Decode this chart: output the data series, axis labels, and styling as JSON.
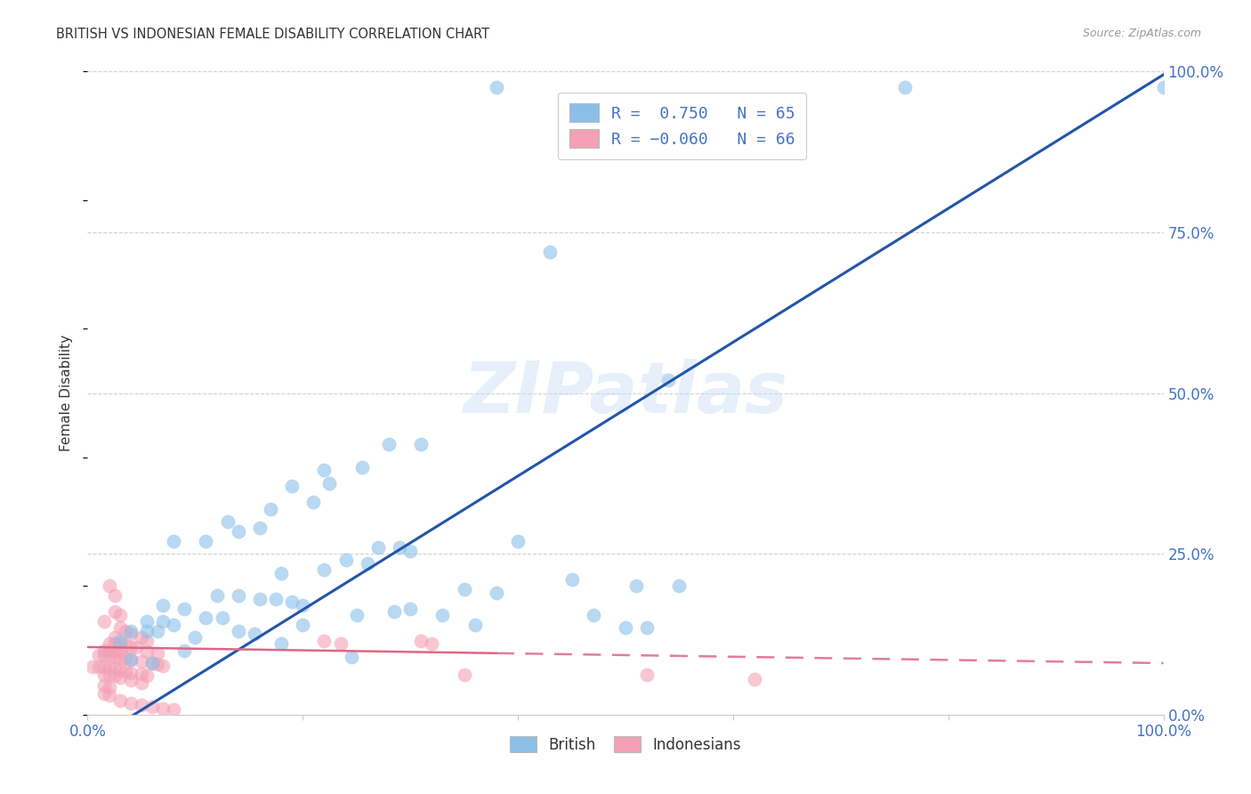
{
  "title": "BRITISH VS INDONESIAN FEMALE DISABILITY CORRELATION CHART",
  "source": "Source: ZipAtlas.com",
  "ylabel": "Female Disability",
  "background_color": "#ffffff",
  "watermark": "ZIPatlas",
  "british_color": "#8BBFE8",
  "indonesian_color": "#F4A0B5",
  "british_line_color": "#2255AA",
  "indonesian_line_color": "#DD6688",
  "axis_color": "#4472C4",
  "title_color": "#333333",
  "source_color": "#999999",
  "grid_color": "#CCCCCC",
  "british_scatter": [
    [
      0.38,
      0.975
    ],
    [
      0.76,
      0.975
    ],
    [
      1.0,
      0.975
    ],
    [
      0.43,
      0.72
    ],
    [
      0.54,
      0.52
    ],
    [
      0.28,
      0.42
    ],
    [
      0.31,
      0.42
    ],
    [
      0.22,
      0.38
    ],
    [
      0.255,
      0.385
    ],
    [
      0.19,
      0.355
    ],
    [
      0.225,
      0.36
    ],
    [
      0.17,
      0.32
    ],
    [
      0.21,
      0.33
    ],
    [
      0.13,
      0.3
    ],
    [
      0.16,
      0.29
    ],
    [
      0.14,
      0.285
    ],
    [
      0.08,
      0.27
    ],
    [
      0.11,
      0.27
    ],
    [
      0.4,
      0.27
    ],
    [
      0.27,
      0.26
    ],
    [
      0.29,
      0.26
    ],
    [
      0.3,
      0.255
    ],
    [
      0.24,
      0.24
    ],
    [
      0.26,
      0.235
    ],
    [
      0.22,
      0.225
    ],
    [
      0.18,
      0.22
    ],
    [
      0.45,
      0.21
    ],
    [
      0.51,
      0.2
    ],
    [
      0.55,
      0.2
    ],
    [
      0.35,
      0.195
    ],
    [
      0.38,
      0.19
    ],
    [
      0.12,
      0.185
    ],
    [
      0.14,
      0.185
    ],
    [
      0.16,
      0.18
    ],
    [
      0.175,
      0.18
    ],
    [
      0.19,
      0.175
    ],
    [
      0.2,
      0.17
    ],
    [
      0.07,
      0.17
    ],
    [
      0.09,
      0.165
    ],
    [
      0.285,
      0.16
    ],
    [
      0.3,
      0.165
    ],
    [
      0.25,
      0.155
    ],
    [
      0.33,
      0.155
    ],
    [
      0.47,
      0.155
    ],
    [
      0.11,
      0.15
    ],
    [
      0.125,
      0.15
    ],
    [
      0.055,
      0.145
    ],
    [
      0.07,
      0.145
    ],
    [
      0.08,
      0.14
    ],
    [
      0.2,
      0.14
    ],
    [
      0.36,
      0.14
    ],
    [
      0.5,
      0.135
    ],
    [
      0.52,
      0.135
    ],
    [
      0.04,
      0.13
    ],
    [
      0.055,
      0.13
    ],
    [
      0.065,
      0.13
    ],
    [
      0.14,
      0.13
    ],
    [
      0.155,
      0.125
    ],
    [
      0.1,
      0.12
    ],
    [
      0.03,
      0.115
    ],
    [
      0.18,
      0.11
    ],
    [
      0.09,
      0.1
    ],
    [
      0.245,
      0.09
    ],
    [
      0.04,
      0.085
    ],
    [
      0.06,
      0.08
    ]
  ],
  "indonesian_scatter": [
    [
      0.02,
      0.2
    ],
    [
      0.025,
      0.185
    ],
    [
      0.025,
      0.16
    ],
    [
      0.03,
      0.155
    ],
    [
      0.015,
      0.145
    ],
    [
      0.03,
      0.135
    ],
    [
      0.035,
      0.13
    ],
    [
      0.04,
      0.125
    ],
    [
      0.025,
      0.12
    ],
    [
      0.05,
      0.12
    ],
    [
      0.055,
      0.115
    ],
    [
      0.02,
      0.11
    ],
    [
      0.025,
      0.11
    ],
    [
      0.03,
      0.11
    ],
    [
      0.035,
      0.108
    ],
    [
      0.04,
      0.105
    ],
    [
      0.045,
      0.105
    ],
    [
      0.015,
      0.1
    ],
    [
      0.02,
      0.1
    ],
    [
      0.025,
      0.1
    ],
    [
      0.03,
      0.098
    ],
    [
      0.055,
      0.098
    ],
    [
      0.065,
      0.095
    ],
    [
      0.01,
      0.092
    ],
    [
      0.015,
      0.092
    ],
    [
      0.02,
      0.092
    ],
    [
      0.025,
      0.09
    ],
    [
      0.03,
      0.088
    ],
    [
      0.035,
      0.088
    ],
    [
      0.04,
      0.085
    ],
    [
      0.05,
      0.083
    ],
    [
      0.06,
      0.08
    ],
    [
      0.065,
      0.078
    ],
    [
      0.07,
      0.076
    ],
    [
      0.005,
      0.075
    ],
    [
      0.01,
      0.075
    ],
    [
      0.015,
      0.075
    ],
    [
      0.02,
      0.073
    ],
    [
      0.025,
      0.073
    ],
    [
      0.03,
      0.07
    ],
    [
      0.035,
      0.068
    ],
    [
      0.04,
      0.065
    ],
    [
      0.05,
      0.063
    ],
    [
      0.055,
      0.06
    ],
    [
      0.22,
      0.115
    ],
    [
      0.235,
      0.11
    ],
    [
      0.31,
      0.115
    ],
    [
      0.32,
      0.11
    ],
    [
      0.35,
      0.062
    ],
    [
      0.52,
      0.062
    ],
    [
      0.62,
      0.055
    ],
    [
      0.015,
      0.062
    ],
    [
      0.02,
      0.062
    ],
    [
      0.025,
      0.06
    ],
    [
      0.03,
      0.058
    ],
    [
      0.04,
      0.054
    ],
    [
      0.05,
      0.05
    ],
    [
      0.015,
      0.045
    ],
    [
      0.02,
      0.042
    ],
    [
      0.015,
      0.033
    ],
    [
      0.02,
      0.03
    ],
    [
      0.03,
      0.022
    ],
    [
      0.04,
      0.018
    ],
    [
      0.05,
      0.015
    ],
    [
      0.06,
      0.012
    ],
    [
      0.07,
      0.01
    ],
    [
      0.08,
      0.008
    ]
  ],
  "xlim": [
    0.0,
    1.0
  ],
  "ylim": [
    0.0,
    1.0
  ],
  "ytick_positions": [
    0.0,
    0.25,
    0.5,
    0.75,
    1.0
  ],
  "ytick_labels": [
    "0.0%",
    "25.0%",
    "50.0%",
    "75.0%",
    "100.0%"
  ],
  "xtick_positions": [
    0.0,
    0.2,
    0.4,
    0.6,
    0.8,
    1.0
  ],
  "xtick_labels": [
    "0.0%",
    "",
    "",
    "",
    "",
    "100.0%"
  ]
}
